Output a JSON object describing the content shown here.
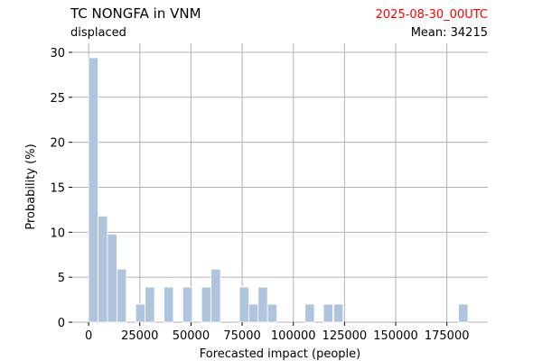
{
  "chart_data": {
    "type": "bar",
    "title": "TC NONGFA in VNM",
    "subtitle_left": "displaced",
    "date": "2025-08-30_00UTC",
    "mean_label": "Mean: 34215",
    "xlabel": "Forecasted impact (people)",
    "ylabel": "Probability (%)",
    "xlim": [
      -8000,
      195000
    ],
    "ylim": [
      0,
      31
    ],
    "xticks": [
      0,
      25000,
      50000,
      75000,
      100000,
      125000,
      150000,
      175000
    ],
    "yticks": [
      0,
      5,
      10,
      15,
      20,
      25,
      30
    ],
    "grid": true,
    "bar_width": 4600,
    "colors": {
      "bar": "#b0c4de",
      "date": "#ff0000",
      "grid": "#b0b0b0"
    },
    "bars": [
      {
        "x": 2300,
        "y": 29.4
      },
      {
        "x": 6900,
        "y": 11.8
      },
      {
        "x": 11500,
        "y": 9.8
      },
      {
        "x": 16100,
        "y": 5.9
      },
      {
        "x": 25300,
        "y": 2.0
      },
      {
        "x": 29900,
        "y": 3.9
      },
      {
        "x": 39100,
        "y": 3.9
      },
      {
        "x": 48300,
        "y": 3.9
      },
      {
        "x": 57500,
        "y": 3.9
      },
      {
        "x": 62100,
        "y": 5.9
      },
      {
        "x": 76000,
        "y": 3.9
      },
      {
        "x": 80500,
        "y": 2.0
      },
      {
        "x": 85100,
        "y": 3.9
      },
      {
        "x": 89700,
        "y": 2.0
      },
      {
        "x": 108000,
        "y": 2.0
      },
      {
        "x": 117000,
        "y": 2.0
      },
      {
        "x": 122000,
        "y": 2.0
      },
      {
        "x": 183000,
        "y": 2.0
      }
    ]
  }
}
